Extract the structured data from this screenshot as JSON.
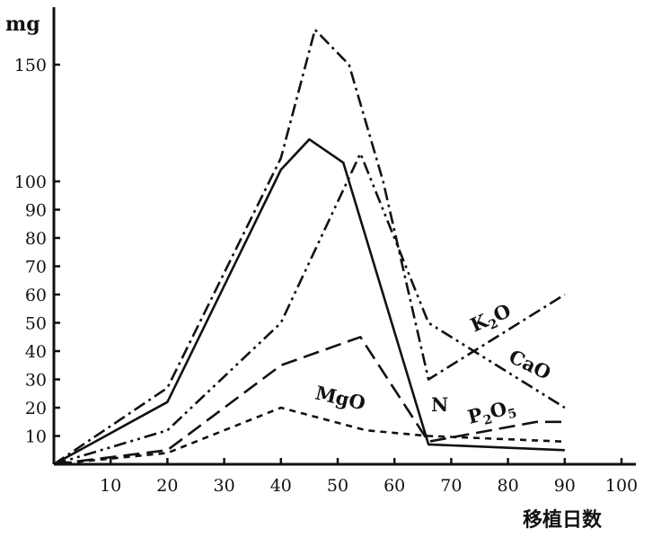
{
  "chart_data": {
    "type": "line",
    "title": "",
    "ylabel": "mg",
    "xlabel": "移植日数",
    "xlim": [
      0,
      100
    ],
    "ylim": [
      0,
      160
    ],
    "grid": false,
    "legend": "inline labels",
    "x_ticks": [
      10,
      20,
      30,
      40,
      50,
      60,
      70,
      80,
      90,
      100
    ],
    "y_ticks": [
      10,
      20,
      30,
      40,
      50,
      60,
      70,
      80,
      90,
      100,
      150
    ],
    "axis_break": [
      100,
      150
    ],
    "series": [
      {
        "name": "K₂O",
        "label_main": "K",
        "label_sub": "2",
        "label_tail": "O",
        "dash": "dash-dot",
        "points": [
          [
            0,
            0
          ],
          [
            20,
            27
          ],
          [
            40,
            110
          ],
          [
            46,
            165
          ],
          [
            52,
            150
          ],
          [
            58,
            100
          ],
          [
            66,
            30
          ],
          [
            90,
            60
          ]
        ]
      },
      {
        "name": "N",
        "label_main": "N",
        "label_sub": "",
        "label_tail": "",
        "dash": "solid",
        "points": [
          [
            0,
            0
          ],
          [
            20,
            22
          ],
          [
            40,
            105
          ],
          [
            45,
            118
          ],
          [
            51,
            108
          ],
          [
            66,
            7
          ],
          [
            90,
            5
          ]
        ]
      },
      {
        "name": "CaO",
        "label_main": "CaO",
        "label_sub": "",
        "label_tail": "",
        "dash": "dash-dot-dot",
        "points": [
          [
            0,
            0
          ],
          [
            20,
            12
          ],
          [
            40,
            50
          ],
          [
            54,
            112
          ],
          [
            66,
            50
          ],
          [
            90,
            20
          ]
        ]
      },
      {
        "name": "P₂O₅",
        "label_main": "P",
        "label_sub": "2",
        "label_tail": "O",
        "label_sub2": "5",
        "dash": "long-dash",
        "points": [
          [
            0,
            0
          ],
          [
            20,
            5
          ],
          [
            40,
            35
          ],
          [
            54,
            45
          ],
          [
            66,
            8
          ],
          [
            85,
            15
          ],
          [
            90,
            15
          ]
        ]
      },
      {
        "name": "MgO",
        "label_main": "MgO",
        "label_sub": "",
        "label_tail": "",
        "dash": "short-dash",
        "points": [
          [
            0,
            0
          ],
          [
            20,
            4
          ],
          [
            40,
            20
          ],
          [
            55,
            12
          ],
          [
            66,
            10
          ],
          [
            90,
            8
          ]
        ]
      }
    ]
  }
}
